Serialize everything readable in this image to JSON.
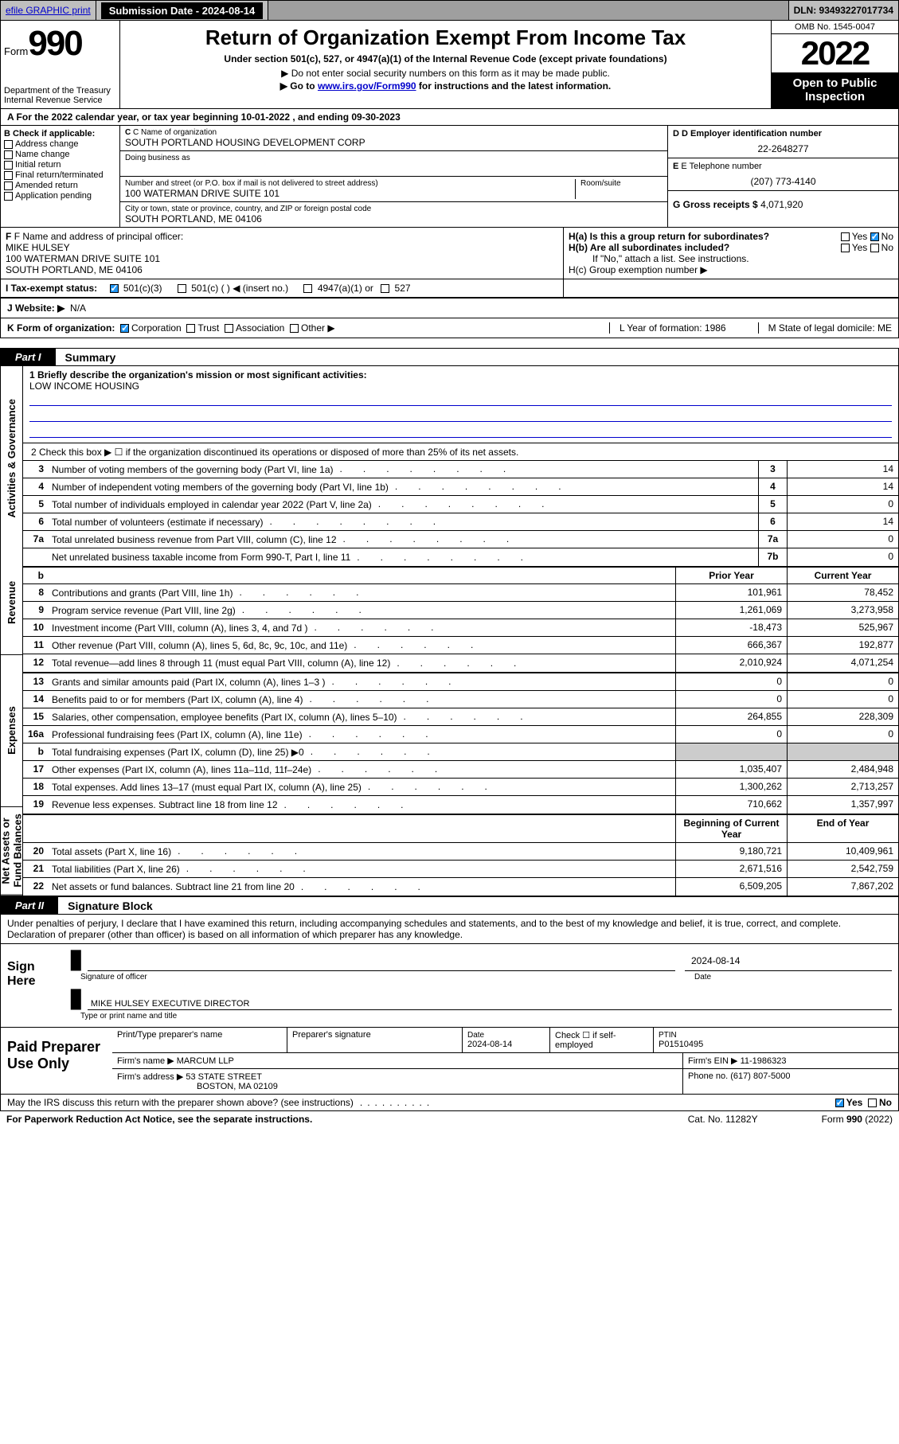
{
  "topbar": {
    "efile": "efile GRAPHIC print",
    "submission_label": "Submission Date - 2024-08-14",
    "dln": "DLN: 93493227017734"
  },
  "header": {
    "form_label": "Form",
    "form_number": "990",
    "dept": "Department of the Treasury",
    "irs": "Internal Revenue Service",
    "title": "Return of Organization Exempt From Income Tax",
    "subtitle": "Under section 501(c), 527, or 4947(a)(1) of the Internal Revenue Code (except private foundations)",
    "note1": "▶ Do not enter social security numbers on this form as it may be made public.",
    "note2_pre": "▶ Go to ",
    "note2_link": "www.irs.gov/Form990",
    "note2_post": " for instructions and the latest information.",
    "omb": "OMB No. 1545-0047",
    "year": "2022",
    "open_public": "Open to Public Inspection"
  },
  "line_a": "A For the 2022 calendar year, or tax year beginning 10-01-2022   , and ending 09-30-2023",
  "section_b": {
    "title": "B Check if applicable:",
    "opts": [
      "Address change",
      "Name change",
      "Initial return",
      "Final return/terminated",
      "Amended return",
      "Application pending"
    ]
  },
  "section_c": {
    "name_lbl": "C Name of organization",
    "name": "SOUTH PORTLAND HOUSING DEVELOPMENT CORP",
    "dba_lbl": "Doing business as",
    "addr_lbl": "Number and street (or P.O. box if mail is not delivered to street address)",
    "room_lbl": "Room/suite",
    "addr": "100 WATERMAN DRIVE SUITE 101",
    "city_lbl": "City or town, state or province, country, and ZIP or foreign postal code",
    "city": "SOUTH PORTLAND, ME  04106"
  },
  "section_d": {
    "ein_lbl": "D Employer identification number",
    "ein": "22-2648277",
    "phone_lbl": "E Telephone number",
    "phone": "(207) 773-4140",
    "gross_lbl": "G Gross receipts $ ",
    "gross": "4,071,920"
  },
  "section_f": {
    "lbl": "F Name and address of principal officer:",
    "name": "MIKE HULSEY",
    "addr1": "100 WATERMAN DRIVE SUITE 101",
    "addr2": "SOUTH PORTLAND, ME  04106"
  },
  "section_h": {
    "a": "H(a)  Is this a group return for subordinates?",
    "a_ans": "No",
    "b": "H(b)  Are all subordinates included?",
    "b_note": "If \"No,\" attach a list. See instructions.",
    "c": "H(c)  Group exemption number ▶"
  },
  "row_i": {
    "lbl": "I    Tax-exempt status:",
    "opt1": "501(c)(3)",
    "opt2": "501(c) (   ) ◀ (insert no.)",
    "opt3": "4947(a)(1) or",
    "opt4": "527"
  },
  "row_j": {
    "lbl": "J   Website: ▶",
    "val": "N/A"
  },
  "row_k": {
    "lbl": "K Form of organization:",
    "opts": [
      "Corporation",
      "Trust",
      "Association",
      "Other ▶"
    ],
    "l": "L Year of formation: 1986",
    "m": "M State of legal domicile: ME"
  },
  "parts": {
    "p1": {
      "num": "Part I",
      "title": "Summary"
    },
    "p2": {
      "num": "Part II",
      "title": "Signature Block"
    }
  },
  "vlabels": [
    "Activities & Governance",
    "Revenue",
    "Expenses",
    "Net Assets or Fund Balances"
  ],
  "mission": {
    "lbl": "1  Briefly describe the organization's mission or most significant activities:",
    "text": "LOW INCOME HOUSING"
  },
  "line2": "2    Check this box ▶ ☐  if the organization discontinued its operations or disposed of more than 25% of its net assets.",
  "col_hdr": {
    "prior": "Prior Year",
    "current": "Current Year",
    "begin": "Beginning of Current Year",
    "end": "End of Year"
  },
  "rows_single": [
    {
      "n": "3",
      "d": "Number of voting members of the governing body (Part VI, line 1a)",
      "box": "3",
      "v": "14"
    },
    {
      "n": "4",
      "d": "Number of independent voting members of the governing body (Part VI, line 1b)",
      "box": "4",
      "v": "14"
    },
    {
      "n": "5",
      "d": "Total number of individuals employed in calendar year 2022 (Part V, line 2a)",
      "box": "5",
      "v": "0"
    },
    {
      "n": "6",
      "d": "Total number of volunteers (estimate if necessary)",
      "box": "6",
      "v": "14"
    },
    {
      "n": "7a",
      "d": "Total unrelated business revenue from Part VIII, column (C), line 12",
      "box": "7a",
      "v": "0"
    },
    {
      "n": "",
      "d": "Net unrelated business taxable income from Form 990-T, Part I, line 11",
      "box": "7b",
      "v": "0"
    }
  ],
  "rows_rev": [
    {
      "n": "8",
      "d": "Contributions and grants (Part VIII, line 1h)",
      "p": "101,961",
      "c": "78,452"
    },
    {
      "n": "9",
      "d": "Program service revenue (Part VIII, line 2g)",
      "p": "1,261,069",
      "c": "3,273,958"
    },
    {
      "n": "10",
      "d": "Investment income (Part VIII, column (A), lines 3, 4, and 7d )",
      "p": "-18,473",
      "c": "525,967"
    },
    {
      "n": "11",
      "d": "Other revenue (Part VIII, column (A), lines 5, 6d, 8c, 9c, 10c, and 11e)",
      "p": "666,367",
      "c": "192,877"
    },
    {
      "n": "12",
      "d": "Total revenue—add lines 8 through 11 (must equal Part VIII, column (A), line 12)",
      "p": "2,010,924",
      "c": "4,071,254"
    }
  ],
  "rows_exp": [
    {
      "n": "13",
      "d": "Grants and similar amounts paid (Part IX, column (A), lines 1–3 )",
      "p": "0",
      "c": "0"
    },
    {
      "n": "14",
      "d": "Benefits paid to or for members (Part IX, column (A), line 4)",
      "p": "0",
      "c": "0"
    },
    {
      "n": "15",
      "d": "Salaries, other compensation, employee benefits (Part IX, column (A), lines 5–10)",
      "p": "264,855",
      "c": "228,309"
    },
    {
      "n": "16a",
      "d": "Professional fundraising fees (Part IX, column (A), line 11e)",
      "p": "0",
      "c": "0"
    },
    {
      "n": "b",
      "d": "Total fundraising expenses (Part IX, column (D), line 25) ▶0",
      "p": "",
      "c": ""
    },
    {
      "n": "17",
      "d": "Other expenses (Part IX, column (A), lines 11a–11d, 11f–24e)",
      "p": "1,035,407",
      "c": "2,484,948"
    },
    {
      "n": "18",
      "d": "Total expenses. Add lines 13–17 (must equal Part IX, column (A), line 25)",
      "p": "1,300,262",
      "c": "2,713,257"
    },
    {
      "n": "19",
      "d": "Revenue less expenses. Subtract line 18 from line 12",
      "p": "710,662",
      "c": "1,357,997"
    }
  ],
  "rows_net": [
    {
      "n": "20",
      "d": "Total assets (Part X, line 16)",
      "p": "9,180,721",
      "c": "10,409,961"
    },
    {
      "n": "21",
      "d": "Total liabilities (Part X, line 26)",
      "p": "2,671,516",
      "c": "2,542,759"
    },
    {
      "n": "22",
      "d": "Net assets or fund balances. Subtract line 21 from line 20",
      "p": "6,509,205",
      "c": "7,867,202"
    }
  ],
  "perjury": "Under penalties of perjury, I declare that I have examined this return, including accompanying schedules and statements, and to the best of my knowledge and belief, it is true, correct, and complete. Declaration of preparer (other than officer) is based on all information of which preparer has any knowledge.",
  "sign": {
    "left": "Sign Here",
    "sig_lbl": "Signature of officer",
    "date_lbl": "Date",
    "date": "2024-08-14",
    "name": "MIKE HULSEY EXECUTIVE DIRECTOR",
    "name_lbl": "Type or print name and title"
  },
  "prep": {
    "left": "Paid Preparer Use Only",
    "r1": {
      "c1": "Print/Type preparer's name",
      "c2": "Preparer's signature",
      "c3_lbl": "Date",
      "c3": "2024-08-14",
      "c4": "Check ☐ if self-employed",
      "c5_lbl": "PTIN",
      "c5": "P01510495"
    },
    "r2": {
      "lbl": "Firm's name    ▶",
      "val": "MARCUM LLP",
      "ein_lbl": "Firm's EIN ▶",
      "ein": "11-1986323"
    },
    "r3": {
      "lbl": "Firm's address ▶",
      "val1": "53 STATE STREET",
      "val2": "BOSTON, MA  02109",
      "ph_lbl": "Phone no.",
      "ph": "(617) 807-5000"
    }
  },
  "discuss": {
    "q": "May the IRS discuss this return with the preparer shown above? (see instructions)",
    "yes": "Yes",
    "no": "No"
  },
  "footer": {
    "left": "For Paperwork Reduction Act Notice, see the separate instructions.",
    "mid": "Cat. No. 11282Y",
    "right": "Form 990 (2022)"
  }
}
